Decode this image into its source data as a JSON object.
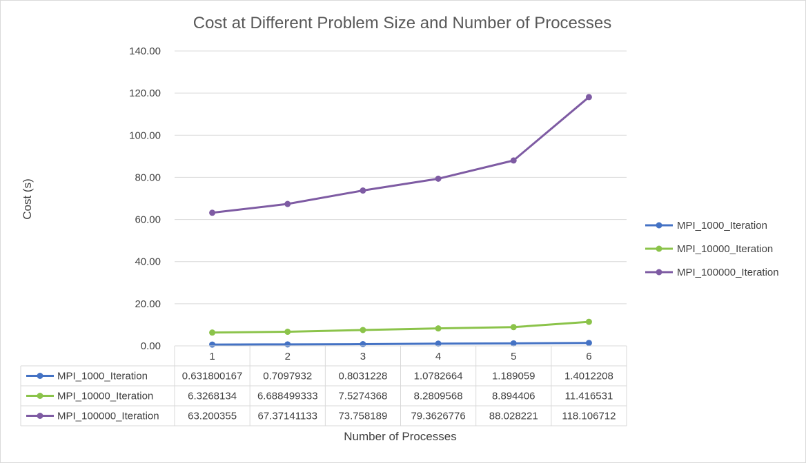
{
  "chart_data": {
    "type": "line",
    "title": "Cost at Different Problem Size and Number of Processes",
    "xlabel": "Number of Processes",
    "ylabel": "Cost (s)",
    "categories": [
      "1",
      "2",
      "3",
      "4",
      "5",
      "6"
    ],
    "ylim": [
      0,
      140
    ],
    "yticks": [
      "0.00",
      "20.00",
      "40.00",
      "60.00",
      "80.00",
      "100.00",
      "120.00",
      "140.00"
    ],
    "grid": true,
    "legend_position": "right",
    "data_table": true,
    "series": [
      {
        "name": "MPI_1000_Iteration",
        "color": "#4472c4",
        "values": [
          0.631800167,
          0.7097932,
          0.8031228,
          1.0782664,
          1.189059,
          1.4012208
        ],
        "labels": [
          "0.631800167",
          "0.7097932",
          "0.8031228",
          "1.0782664",
          "1.189059",
          "1.4012208"
        ]
      },
      {
        "name": "MPI_10000_Iteration",
        "color": "#8bc34a",
        "values": [
          6.3268134,
          6.688499333,
          7.5274368,
          8.2809568,
          8.894406,
          11.416531
        ],
        "labels": [
          "6.3268134",
          "6.688499333",
          "7.5274368",
          "8.2809568",
          "8.894406",
          "11.416531"
        ]
      },
      {
        "name": "MPI_100000_Iteration",
        "color": "#7e5ba3",
        "values": [
          63.200355,
          67.37141133,
          73.758189,
          79.3626776,
          88.028221,
          118.106712
        ],
        "labels": [
          "63.200355",
          "67.37141133",
          "73.758189",
          "79.3626776",
          "88.028221",
          "118.106712"
        ]
      }
    ]
  }
}
